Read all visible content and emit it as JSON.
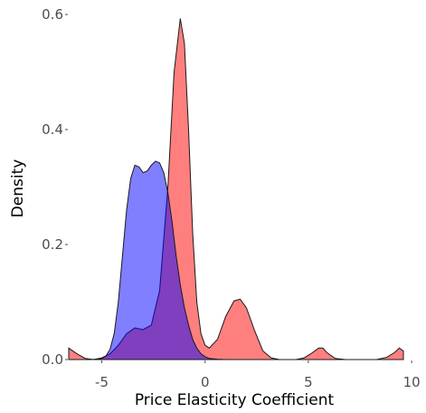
{
  "chart_data": {
    "type": "area",
    "title": "",
    "xlabel": "Price Elasticity Coefficient",
    "ylabel": "Density",
    "xlim": [
      -6.6,
      9.6
    ],
    "ylim": [
      0,
      0.6
    ],
    "x_ticks": [
      -5,
      0,
      5,
      10
    ],
    "x_tick_labels": [
      "-5",
      "0",
      "5",
      "10"
    ],
    "y_ticks": [
      0.0,
      0.2,
      0.4,
      0.6
    ],
    "y_tick_labels": [
      "0.0",
      "0.2",
      "0.4",
      "0.6"
    ],
    "grid": false,
    "legend": "none",
    "series": [
      {
        "color": "#ff0000",
        "opacity": 0.5,
        "x": [
          -6.6,
          -6.2,
          -5.8,
          -5.4,
          -5.0,
          -4.6,
          -4.2,
          -3.8,
          -3.4,
          -3.0,
          -2.6,
          -2.2,
          -1.8,
          -1.5,
          -1.2,
          -1.0,
          -0.8,
          -0.6,
          -0.4,
          -0.2,
          0.0,
          0.2,
          0.6,
          1.0,
          1.4,
          1.7,
          2.0,
          2.4,
          2.8,
          3.2,
          3.6,
          4.0,
          4.4,
          4.8,
          5.2,
          5.5,
          5.7,
          5.9,
          6.3,
          6.8,
          7.3,
          7.8,
          8.3,
          8.8,
          9.2,
          9.4,
          9.6
        ],
        "y": [
          0.02,
          0.01,
          0.002,
          0.0,
          0.003,
          0.01,
          0.025,
          0.045,
          0.055,
          0.052,
          0.06,
          0.12,
          0.3,
          0.5,
          0.593,
          0.55,
          0.4,
          0.22,
          0.1,
          0.045,
          0.025,
          0.02,
          0.035,
          0.075,
          0.102,
          0.105,
          0.09,
          0.05,
          0.015,
          0.003,
          0.0,
          0.0,
          0.0,
          0.003,
          0.012,
          0.02,
          0.02,
          0.012,
          0.002,
          0.0,
          0.0,
          0.0,
          0.0,
          0.004,
          0.013,
          0.02,
          0.015
        ]
      },
      {
        "color": "#0000ff",
        "opacity": 0.5,
        "x": [
          -6.6,
          -5.6,
          -5.2,
          -5.0,
          -4.8,
          -4.6,
          -4.4,
          -4.2,
          -4.0,
          -3.8,
          -3.6,
          -3.4,
          -3.2,
          -3.0,
          -2.8,
          -2.6,
          -2.4,
          -2.2,
          -2.0,
          -1.8,
          -1.6,
          -1.4,
          -1.2,
          -1.0,
          -0.8,
          -0.6,
          -0.4,
          -0.2,
          0.0,
          0.2,
          0.6,
          1.0,
          1.6,
          9.6
        ],
        "y": [
          0.0,
          0.0,
          0.0005,
          0.002,
          0.006,
          0.018,
          0.045,
          0.1,
          0.18,
          0.26,
          0.315,
          0.338,
          0.335,
          0.325,
          0.328,
          0.338,
          0.345,
          0.342,
          0.325,
          0.29,
          0.24,
          0.18,
          0.13,
          0.09,
          0.06,
          0.035,
          0.02,
          0.01,
          0.005,
          0.002,
          0.0005,
          0.0,
          0.0,
          0.0
        ]
      }
    ]
  }
}
